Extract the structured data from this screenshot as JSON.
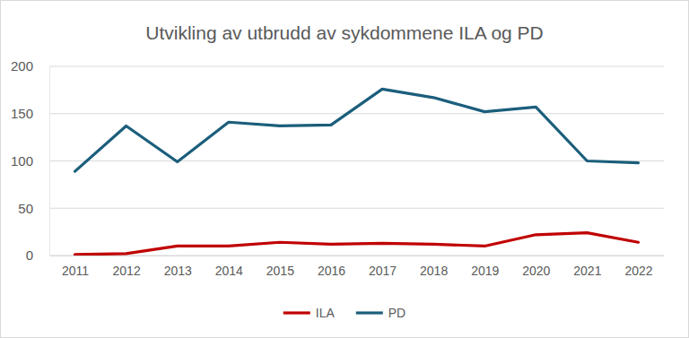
{
  "chart_data": {
    "type": "line",
    "title": "Utvikling av utbrudd av sykdommene ILA og PD",
    "categories": [
      "2011",
      "2012",
      "2013",
      "2014",
      "2015",
      "2016",
      "2017",
      "2018",
      "2019",
      "2020",
      "2021",
      "2022"
    ],
    "series": [
      {
        "name": "ILA",
        "color": "#c00000",
        "values": [
          1,
          2,
          10,
          10,
          14,
          12,
          13,
          12,
          10,
          22,
          24,
          14
        ]
      },
      {
        "name": "PD",
        "color": "#1b5e7b",
        "values": [
          89,
          137,
          99,
          141,
          137,
          138,
          176,
          167,
          152,
          157,
          100,
          98
        ]
      }
    ],
    "ylim": [
      0,
      200
    ],
    "yticks": [
      0,
      50,
      100,
      150,
      200
    ],
    "grid": true,
    "legend": "bottom"
  }
}
